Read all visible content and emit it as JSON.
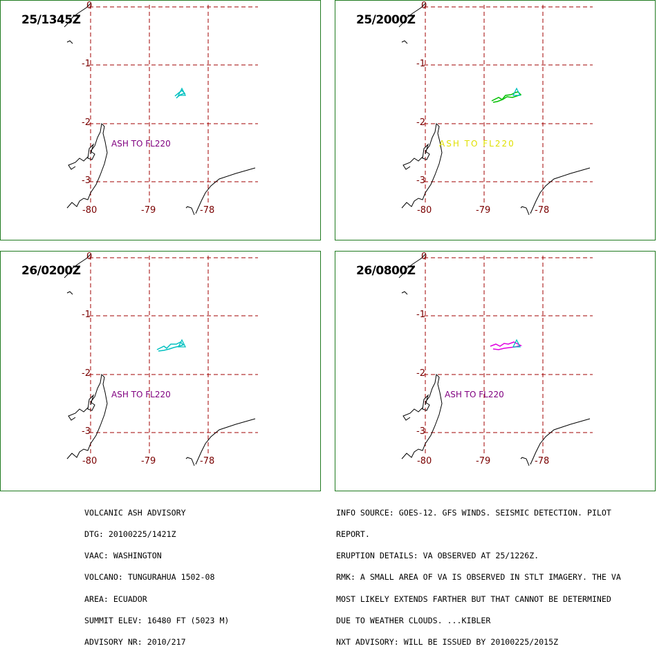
{
  "panels": [
    {
      "time": "25/1345Z",
      "ash_label": "ASH TO FL220",
      "ash_color": "#800080",
      "cloud_color": "#00c0c0"
    },
    {
      "time": "25/2000Z",
      "ash_label": "ASH TO FL220",
      "ash_color": "#e0e000",
      "cloud_color": "#00c000"
    },
    {
      "time": "26/0200Z",
      "ash_label": "ASH TO FL220",
      "ash_color": "#800080",
      "cloud_color": "#00c0c0"
    },
    {
      "time": "26/0800Z",
      "ash_label": "ASH TO FL220",
      "ash_color": "#800080",
      "cloud_color": "#e000e0"
    }
  ],
  "grid": {
    "lat_labels": [
      "0",
      "-1",
      "-2",
      "-3"
    ],
    "lon_labels": [
      "-80",
      "-79",
      "-78"
    ],
    "grid_color": "#a00000",
    "coast_color": "#000000",
    "volcano_marker_color": "#00c0c0"
  },
  "advisory_left": [
    "VOLCANIC ASH ADVISORY",
    "DTG: 20100225/1421Z",
    "VAAC: WASHINGTON",
    "VOLCANO: TUNGURAHUA 1502-08",
    "AREA: ECUADOR",
    "SUMMIT ELEV: 16480 FT (5023 M)",
    "ADVISORY NR: 2010/217"
  ],
  "advisory_right": [
    "INFO SOURCE: GOES-12. GFS WINDS. SEISMIC DETECTION. PILOT",
    "REPORT.",
    "ERUPTION DETAILS: VA OBSERVED AT 25/1226Z.",
    "RMK: A SMALL AREA OF VA IS OBSERVED IN STLT IMAGERY. THE VA",
    "MOST LIKELY EXTENDS FARTHER BUT THAT CANNOT BE DETERMINED",
    "DUE TO WEATHER CLOUDS. ...KIBLER",
    "NXT ADVISORY: WILL BE ISSUED BY 20100225/2015Z"
  ]
}
